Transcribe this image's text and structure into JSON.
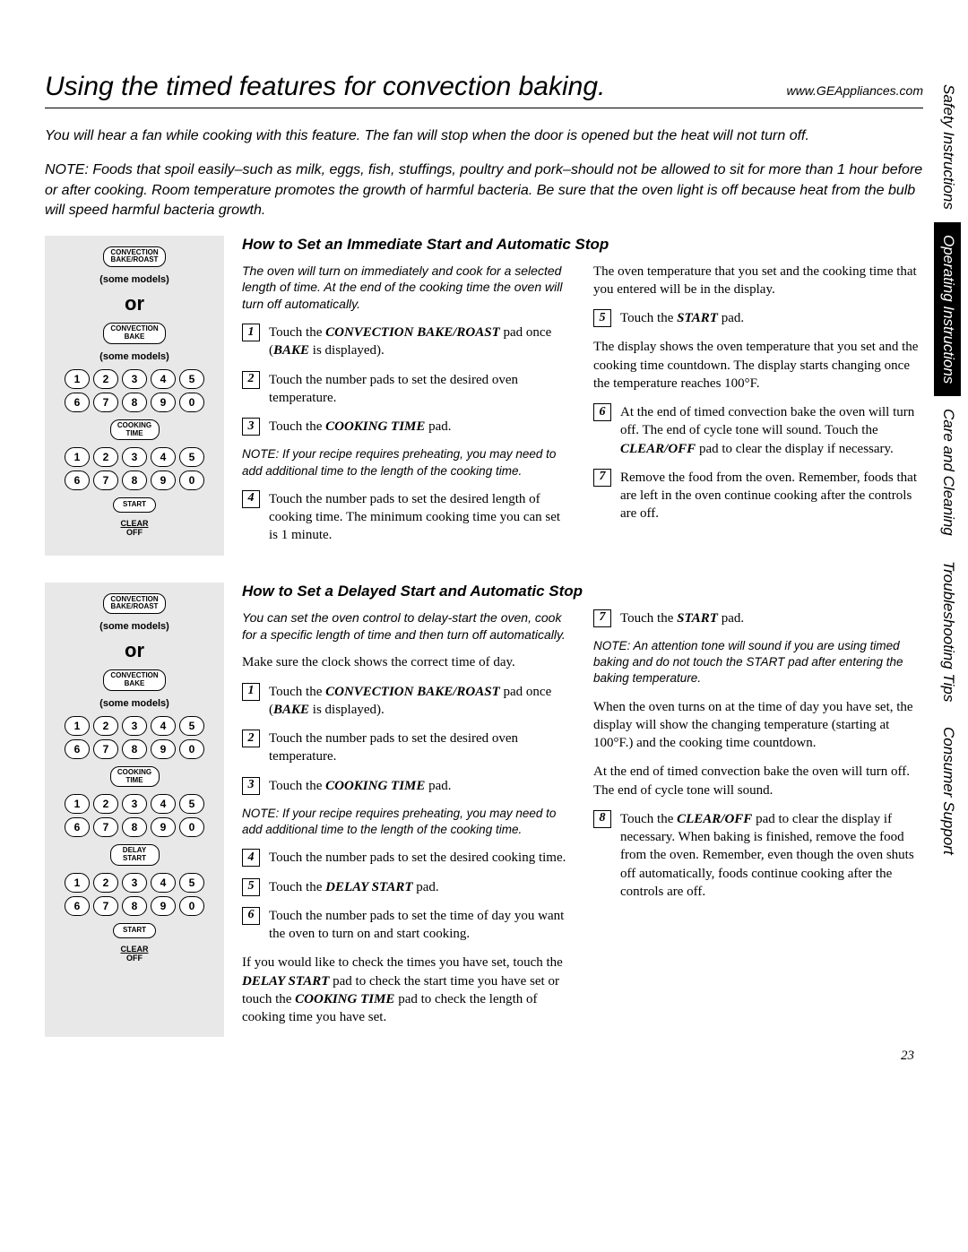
{
  "header": {
    "title": "Using the timed features for convection baking.",
    "url": "www.GEAppliances.com"
  },
  "intro": "You will hear a fan while cooking with this feature. The fan will stop when the door is opened but the heat will not turn off.",
  "intro_note": "NOTE: Foods that spoil easily–such as milk, eggs, fish, stuffings, poultry and pork–should not be allowed to sit for more than 1 hour before or after cooking. Room temperature promotes the growth of harmful bacteria. Be sure that the oven light is off because heat from the bulb will speed harmful bacteria growth.",
  "panel": {
    "conv_bake_roast": "CONVECTION\nBAKE/ROAST",
    "conv_bake": "CONVECTION\nBAKE",
    "some_models": "(some models)",
    "or": "or",
    "cooking_time": "COOKING\nTIME",
    "delay_start": "DELAY\nSTART",
    "start": "START",
    "clear": "CLEAR",
    "off": "OFF",
    "nums": [
      "1",
      "2",
      "3",
      "4",
      "5",
      "6",
      "7",
      "8",
      "9",
      "0"
    ]
  },
  "section1": {
    "heading": "How to Set an Immediate Start and Automatic Stop",
    "lead": "The oven will turn on immediately and cook for a selected length of time. At the end of the cooking time the oven will turn off automatically.",
    "left_steps": {
      "s1": "Touch the CONVECTION BAKE/ROAST pad once (BAKE is displayed).",
      "s2": "Touch the number pads to set the desired oven temperature.",
      "s3": "Touch the COOKING TIME pad.",
      "note": "NOTE: If your recipe requires preheating, you may need to add additional time to the length of the cooking time.",
      "s4": "Touch the number pads to set the desired length of cooking time. The minimum cooking time you can set is 1 minute."
    },
    "right": {
      "p1": "The oven temperature that you set and the cooking time that you entered will be in the display.",
      "s5": "Touch the START pad.",
      "p2": "The display shows the oven temperature that you set and the cooking time countdown. The display starts changing once the temperature reaches 100°F.",
      "s6": "At the end of timed convection bake the oven will turn off. The end of cycle tone will sound. Touch the CLEAR/OFF pad to clear the display if necessary.",
      "s7": "Remove the food from the oven. Remember, foods that are left in the oven continue cooking after the controls are off."
    }
  },
  "section2": {
    "heading": "How to Set a Delayed Start and Automatic Stop",
    "lead": "You can set the oven control to delay-start the oven, cook for a specific length of time and then turn off automatically.",
    "left": {
      "p1": "Make sure the clock shows the correct time of day.",
      "s1": "Touch the CONVECTION BAKE/ROAST pad once (BAKE is displayed).",
      "s2": "Touch the number pads to set the desired oven temperature.",
      "s3": "Touch the COOKING TIME pad.",
      "note": "NOTE: If your recipe requires preheating, you may need to add additional time to the length of the cooking time.",
      "s4": "Touch the number pads to set the desired cooking time.",
      "s5": "Touch the DELAY START pad.",
      "s6": "Touch the number pads to set the time of day you want the oven to turn on and start cooking.",
      "p2": "If you would like to check the times you have set, touch the DELAY START pad to check the start time you have set or touch the COOKING TIME pad to check the length of cooking time you have set."
    },
    "right": {
      "s7": "Touch the START pad.",
      "note": "NOTE: An attention tone will sound if you are using timed baking and do not touch the START pad after entering the baking temperature.",
      "p1": "When the oven turns on at the time of day you have set, the display will show the changing temperature (starting at 100°F.) and the cooking time countdown.",
      "p2": "At the end of timed convection bake the oven will turn off. The end of cycle tone will sound.",
      "s8": "Touch the CLEAR/OFF pad to clear the display if necessary. When baking is finished, remove the food from the oven. Remember, even though the oven shuts off automatically, foods continue cooking after the controls are off."
    }
  },
  "tabs": {
    "t1": "Safety Instructions",
    "t2": "Operating Instructions",
    "t3": "Care and Cleaning",
    "t4": "Troubleshooting Tips",
    "t5": "Consumer Support"
  },
  "page_number": "23"
}
